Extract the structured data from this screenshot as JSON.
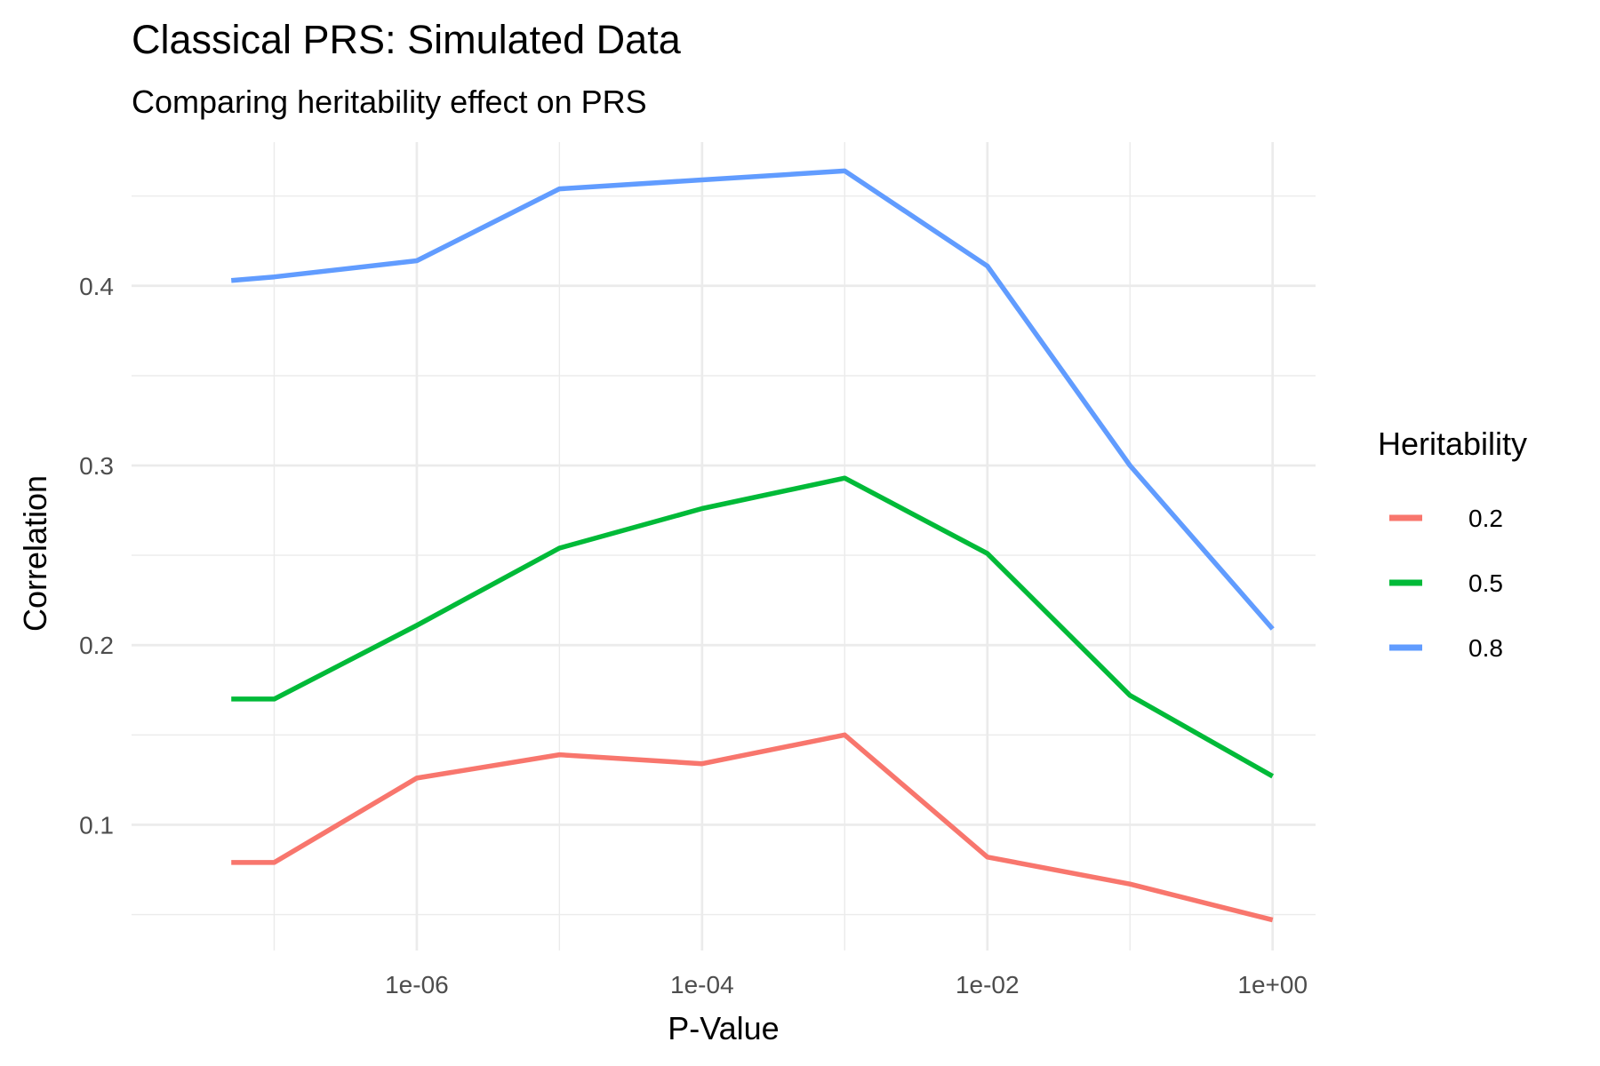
{
  "chart_data": {
    "type": "line",
    "title": "Classical PRS: Simulated Data",
    "subtitle": "Comparing heritability effect on PRS",
    "xlabel": "P-Value",
    "ylabel": "Correlation",
    "x_scale": "log10",
    "x": [
      5e-08,
      1e-07,
      1e-06,
      1e-05,
      0.0001,
      0.001,
      0.01,
      0.1,
      1
    ],
    "xlim": [
      1e-08,
      2
    ],
    "ylim": [
      0.03,
      0.48
    ],
    "x_ticks": [
      {
        "value": 1e-06,
        "label": "1e-06"
      },
      {
        "value": 0.0001,
        "label": "1e-04"
      },
      {
        "value": 0.01,
        "label": "1e-02"
      },
      {
        "value": 1,
        "label": "1e+00"
      }
    ],
    "y_ticks": [
      {
        "value": 0.1,
        "label": "0.1"
      },
      {
        "value": 0.2,
        "label": "0.2"
      },
      {
        "value": 0.3,
        "label": "0.3"
      },
      {
        "value": 0.4,
        "label": "0.4"
      }
    ],
    "grid": true,
    "legend": {
      "title": "Heritability",
      "position": "right"
    },
    "series": [
      {
        "name": "0.2",
        "color": "#F8766D",
        "values": [
          0.079,
          0.079,
          0.126,
          0.139,
          0.134,
          0.15,
          0.082,
          0.067,
          0.047
        ]
      },
      {
        "name": "0.5",
        "color": "#00BA38",
        "values": [
          0.17,
          0.17,
          0.211,
          0.254,
          0.276,
          0.293,
          0.251,
          0.172,
          0.127
        ]
      },
      {
        "name": "0.8",
        "color": "#619CFF",
        "values": [
          0.403,
          0.405,
          0.414,
          0.454,
          0.459,
          0.464,
          0.411,
          0.3,
          0.209
        ]
      }
    ]
  }
}
